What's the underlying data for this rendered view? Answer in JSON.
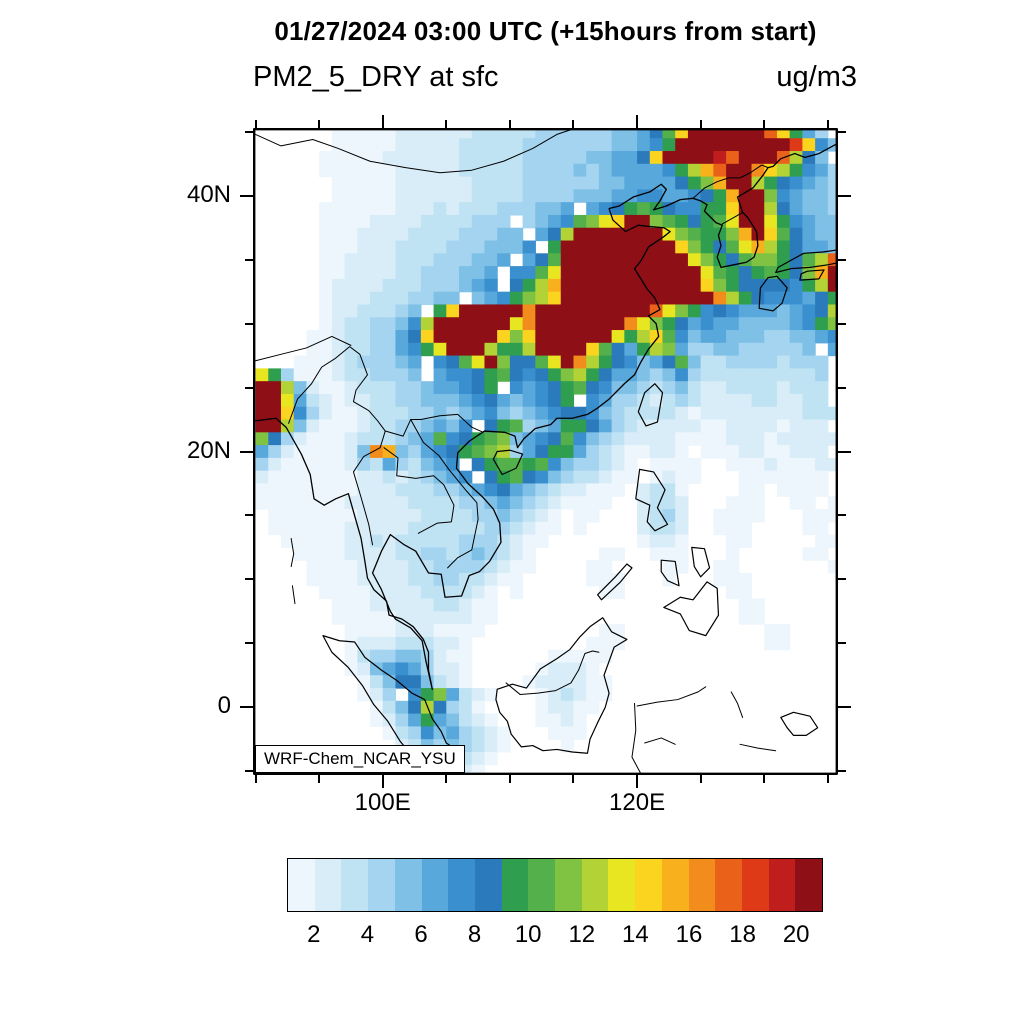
{
  "header": {
    "datetime_title": "01/27/2024 03:00 UTC (+15hours from start)",
    "variable_title": "PM2_5_DRY at sfc",
    "units_label": "ug/m3"
  },
  "map": {
    "annotation_label": "WRF-Chem_NCAR_YSU"
  },
  "axes": {
    "x_ticks": [
      {
        "value": 100,
        "label": "100E"
      },
      {
        "value": 120,
        "label": "120E"
      }
    ],
    "x_minor": [
      90,
      95,
      105,
      110,
      115,
      125,
      130,
      135
    ],
    "y_ticks": [
      {
        "value": 40,
        "label": "40N"
      },
      {
        "value": 20,
        "label": "20N"
      },
      {
        "value": 0,
        "label": "0"
      }
    ],
    "y_minor": [
      -5,
      5,
      10,
      15,
      25,
      30,
      35,
      45
    ]
  },
  "chart_data": {
    "type": "heatmap",
    "title": "PM2_5_DRY at sfc",
    "suptitle": "01/27/2024 03:00 UTC (+15hours from start)",
    "units": "ug/m3",
    "annotation": "WRF-Chem_NCAR_YSU",
    "lon_min": 89.8,
    "lon_max": 135.8,
    "lat_min": -5.3,
    "lat_max": 45.3,
    "colorbar": {
      "tick_labels": [
        2,
        4,
        6,
        8,
        10,
        12,
        14,
        16,
        18,
        20
      ],
      "min_level": 1,
      "max_level": 21,
      "colors": [
        "#edf6fc",
        "#d9edf8",
        "#c0e3f4",
        "#a4d4ef",
        "#7fc0e7",
        "#58a8dc",
        "#3a90cf",
        "#2b7bbc",
        "#2f9e4f",
        "#53b04a",
        "#80c342",
        "#b2d235",
        "#e8e621",
        "#fad41f",
        "#f8b01d",
        "#f28c1c",
        "#ea611a",
        "#de3a18",
        "#c01e1c",
        "#8e1016"
      ]
    },
    "grid": {
      "lon_start": 90,
      "lat_start": 45.5,
      "cell_deg": 1,
      "encoding": "0 = below 1 ug/m3 (white); 1-9 = levels 1-9; a-k = levels 10-20",
      "rows": [
        "00000011111222222333334444445568aekkkkkkhe964",
        "000000111112222233333444444455679kkkkkkkkkie75",
        "0000011111222222333334444455668ekkkkjhkkkhc85",
        "0000011111122222333334444545666679cfhkkgec97644",
        "00000011111222222333344444455666689bfkkc9876544",
        "0000001111122222233334444555667766789fkkb765544",
        "0000011111122232333444556 6789a987799ekkc865544",
        "00000111122223333444 4567abdekkba989adkkd976554",
        "000001112222333344455 68ckkkkkkkdba99bfkea86554",
        "0000011122233334445557 9kkkkkkkkkeb98adfc986655",
        "00000112222333444556 68akkkkkkkkkkdb98abb98achh",
        "0000011222233444556 77adkkkkkkkkkkkda989a98bfkk",
        "0000012222333444567 89cfkkkkkkkkkkkeb9888879ckk",
        "0000012223334455 5679bcekkkkkkkkkkkkgc98777689eg",
        "0000012233345 9ekkkkkgkkkkkkkkkhdb97876665678ce",
        "0000012334457ckkkkkkdgkkkkkkkgdb9867665555679b",
        "0000112334468ekkkkkebekkkkkkd9cea75665554455678",
        "00001123344679dkkkc99ckkkkea869cb64455444445 66",
        "0001112344456 78adkb88adkgc987568a53344443444 55",
        "d941112334445 67789a8789bc9866545743333333334 44",
        "kkc5211233344566789 76789a8755434532233332333 43",
        "kkd6321223344555678656789 7644323432222332233 33",
        "kke7421123334454567545678875433332122222222333",
        "kkc52111233445657 89a456998643222221122221222 32",
        "b8421112333456a789ab5678a754322221111222122222",
        "642111125gf546789abc4689964321122101112211222 2",
        "4211111243643567 89aa9a754432101111001112111222",
        "21111111223234567 89a875433211012110001111111 21",
        "111111112223334456786543221110233100001101111 1",
        "11111112222233334456543211110023320001110011 11",
        "0111111122222333344543210110002342001111000111",
        "011111122222333333443211010000233200111000011 1",
        "0011111223233333444321100000001221000110000011",
        "000111122223344345432100000110011100010000011",
        "0000111122223344443211000011000011001100000001",
        "000011112222334433211000001110001000111000000 0",
        "00000111122223333210100000011000000001100000 00",
        "000000111222223321100000000000000000001100000 0",
        "0000001111122222211000000000000000000011000 00",
        "00000001111222111100000000011000000000001100 00",
        "0000000122233322100000000011100000000000110 00",
        "000000013445542110000001111100000000000000000 ",
        "000000012567642210000012221000000000000000000 ",
        "00000000135885321000012222110000000000000000 0",
        "00000000124 79b6321000123211000000000000000000",
        "0000000001358c84310000122110000000000000000 00",
        "00000000012469653210001121000000000000000000 0",
        "000000000013475643210001110000000000000000000",
        "000000000002354543210000100000000000000000000",
        "000000000001233432100000000000000000000000000",
        "000000000000122321000000000000000000000000000"
      ]
    },
    "geo": {
      "coastlines": [
        [
          90,
          22.4,
          91.6,
          22.6,
          92.4,
          21.9,
          93.6,
          19.8,
          94.3,
          18.2,
          94.6,
          16.3,
          95.4,
          15.8,
          96.3,
          16.3,
          97.3,
          16.7,
          97.7,
          15.3,
          98.3,
          13.2,
          98.6,
          11.4,
          98.8,
          10.1,
          99.3,
          9.2,
          100.3,
          8.3,
          100.5,
          7.2,
          101.5,
          6.9,
          102.4,
          6.3,
          103.2,
          5.3,
          103.6,
          4.3,
          103.6,
          2.9,
          103.9,
          1.4,
          103.4,
          3.6,
          103.1,
          5.2,
          102.2,
          6.2,
          101,
          6.9,
          100.6,
          7.5,
          99.9,
          9.2,
          99.2,
          10.5,
          99.9,
          12.2,
          100.6,
          13.5,
          101.7,
          12.7,
          102.6,
          12.2,
          103.6,
          10.5,
          104.6,
          10.4,
          104.9,
          8.6,
          106.2,
          8.7,
          106.8,
          10.3,
          107.6,
          10.6,
          108.4,
          11.4,
          109.3,
          12.9,
          109.2,
          14.4,
          108.7,
          15.5,
          107.9,
          16.4,
          106.7,
          17.5,
          105.8,
          18.7,
          105.9,
          19.9,
          106.8,
          20.8,
          108,
          21.6,
          109.6,
          21.5,
          110.4,
          21.2,
          110.6,
          20.3,
          111.1,
          21,
          112,
          21.8,
          113.2,
          22.1,
          113.7,
          22.6,
          114.9,
          22.6,
          116.1,
          22.9,
          116.9,
          23.4,
          117.8,
          24.1,
          119,
          25.3,
          119.8,
          26,
          120.3,
          27,
          120.9,
          28,
          121.7,
          29,
          121.5,
          30,
          120.9,
          30.6,
          121.8,
          31.1,
          121.4,
          32,
          120.8,
          32.7,
          119.8,
          34.3,
          120.3,
          34.9,
          120.9,
          36,
          122.1,
          36.8,
          122.6,
          37.2,
          122.1,
          37.5,
          120.9,
          37.6,
          120.1,
          37.7,
          119.1,
          37.2,
          118.1,
          38.1,
          117.8,
          39,
          118.6,
          39.2,
          119.7,
          39.9,
          121,
          40.3,
          121.9,
          40.9,
          122.3,
          40.5,
          121.8,
          39.6,
          121.3,
          38.9,
          122.3,
          39.2,
          123.4,
          39.7,
          124.4,
          39.8,
          125,
          39.6,
          125.5,
          39.3,
          125.3,
          38.8,
          126.2,
          37.9,
          126.7,
          37.7,
          126.4,
          36.9,
          126.6,
          36.1,
          126.3,
          35.2,
          126.6,
          34.4,
          127.6,
          34.6,
          128.6,
          34.8,
          129.2,
          35.2,
          129.5,
          36.1,
          129.4,
          37.2,
          128.7,
          38.3,
          128.3,
          38.7,
          127.9,
          39.9,
          129.1,
          40.6,
          129.9,
          41.6,
          130.3,
          42.2,
          130.7,
          42.3,
          131.3,
          42.9,
          132.4,
          43.3,
          133.2,
          43,
          134.3,
          43.3,
          135.4,
          43.9,
          136,
          44.2
        ]
      ],
      "borders": [
        [
          90,
          44.8,
          92,
          43.9,
          94.5,
          44.4,
          96.5,
          43.7,
          99,
          42.7,
          101.8,
          42.2,
          104.5,
          41.8,
          107,
          42,
          109.5,
          42.7,
          111.8,
          43.7,
          113.7,
          44.8,
          115.5,
          45.4
        ],
        [
          90,
          27.1,
          92,
          27.6,
          94,
          28.1,
          96,
          29,
          97.5,
          28.3
        ],
        [
          92.6,
          22.2,
          93.3,
          24.1,
          94.4,
          25.3,
          95.2,
          26.6,
          96.3,
          27.3,
          97.4,
          28.2,
          98.2,
          27.6,
          98.8,
          26,
          97.9,
          24.8,
          97.7,
          23.9,
          98.9,
          23.2,
          99.6,
          22.4,
          100.2,
          21.6
        ],
        [
          100.2,
          21.6,
          99.8,
          20.3,
          98.5,
          19.6,
          97.7,
          18.4,
          98.3,
          16.4,
          98.9,
          14.3,
          99.2,
          12.7
        ],
        [
          100.2,
          21.6,
          101.6,
          21.2,
          102.2,
          22.5,
          103,
          22.5,
          104.5,
          22.8,
          105.9,
          22.9,
          107,
          21.9,
          107.9,
          21.5
        ],
        [
          102.2,
          22.5,
          103.2,
          20.7,
          104.4,
          19.7,
          105.2,
          18.6,
          106.6,
          16.9,
          107.4,
          16,
          107.5,
          14.7
        ],
        [
          100.1,
          20.3,
          101.2,
          19.5,
          101.1,
          18.1,
          102.6,
          17.9,
          104,
          18.1,
          104.8,
          17.4,
          105.6,
          15.8,
          105.4,
          14.5,
          104.3,
          14.4,
          102.8,
          13.6
        ],
        [
          107.5,
          14.7,
          107,
          12.3,
          105.9,
          11.7,
          105.1,
          10.9
        ],
        [
          124.4,
          39.8,
          125.3,
          40.6,
          126.3,
          41.1,
          127.2,
          41.4,
          128.1,
          41.4,
          128.9,
          41.8,
          129.8,
          42.4,
          130.3,
          42.2
        ],
        [
          126.7,
          37.8,
          127.6,
          38.3,
          128.3,
          38.7
        ],
        [
          109.7,
          1.9,
          110.8,
          1,
          112.2,
          1.1,
          113.6,
          1.3,
          114.8,
          1.9,
          115.4,
          2.9,
          115.9,
          4.2,
          116.5,
          4.4,
          117,
          4.3
        ],
        [
          119.8,
          0.3,
          119.9,
          -1.8,
          119.6,
          -3.9,
          120.3,
          -5.2
        ],
        [
          120,
          0.1,
          121.6,
          0.4,
          123.2,
          0.6,
          124.8,
          1.2,
          125.4,
          1.6
        ],
        [
          120.6,
          -2.8,
          121.9,
          -2.4,
          123,
          -2.9
        ],
        [
          92.8,
          13.2,
          93,
          12,
          92.8,
          11
        ],
        [
          92.9,
          9.5,
          93.1,
          8.1
        ],
        [
          127.4,
          1.2,
          127.9,
          0.3,
          128.3,
          -0.8
        ],
        [
          128.1,
          -2.9,
          129.5,
          -3.2,
          130.9,
          -3.4
        ]
      ],
      "islands": [
        [
          120.1,
          23.1,
          120.7,
          22,
          121.6,
          22.3,
          122,
          24.6,
          121.4,
          25.3,
          120.6,
          24.6
        ],
        [
          108.7,
          19.4,
          109.4,
          18.2,
          110.5,
          18.7,
          111,
          19.8,
          110,
          20.1,
          109,
          20
        ],
        [
          120.2,
          18.6,
          121.3,
          18.4,
          122.2,
          17,
          121.6,
          15.6,
          122.4,
          14.3,
          121.4,
          13.8,
          120.8,
          14.5,
          121,
          15.8,
          119.9,
          16.3
        ],
        [
          122.1,
          7.8,
          123.4,
          8.6,
          124.4,
          8.4,
          125.5,
          9.8,
          126.3,
          9.3,
          126.4,
          7.2,
          125.4,
          5.6,
          124.1,
          6,
          123.4,
          7.3
        ],
        [
          124.3,
          12.5,
          125.3,
          12.4,
          125.7,
          10.9,
          125,
          10.2,
          124.5,
          11
        ],
        [
          121.9,
          11.5,
          123,
          11.4,
          123.3,
          9.5,
          122.4,
          9.9,
          121.9,
          10.6
        ],
        [
          117.2,
          8.4,
          118.7,
          9.8,
          119.6,
          10.9,
          119.2,
          11.2,
          118.3,
          10.2,
          116.9,
          8.8
        ],
        [
          109,
          1.4,
          110.2,
          1.8,
          111.3,
          1.5,
          112.4,
          3,
          113.7,
          3.8,
          114.7,
          4.5,
          115.5,
          5.5,
          116.3,
          6.3,
          117.3,
          7,
          118,
          5.9,
          119.2,
          5.3,
          118.2,
          4.7,
          117.8,
          3.6,
          117.4,
          2.5,
          117.8,
          1.1,
          117.5,
          0,
          116.9,
          -1.2,
          116.3,
          -2.5,
          116.1,
          -3.6,
          114.9,
          -3.5,
          113.7,
          -3.3,
          112.6,
          -3.4,
          111.8,
          -3,
          110.9,
          -3.1,
          110.1,
          -2.1,
          109.8,
          -1.1,
          109.2,
          -0.4,
          108.9,
          0.6
        ],
        [
          95.3,
          5.6,
          96.6,
          5.2,
          97.8,
          5.1,
          98.6,
          3.9,
          99.9,
          2.9,
          101.1,
          2.1,
          102.3,
          1.1,
          103.3,
          0.6,
          103.9,
          -0.9,
          104.6,
          -1.9,
          105,
          -2.8,
          105.9,
          -3.4,
          105.9,
          -4.7,
          105.6,
          -5.5,
          104.6,
          -5.3,
          103.6,
          -4.7,
          102.4,
          -3.9,
          101.4,
          -2.7,
          100.4,
          -1.1,
          99.3,
          0.2,
          98.4,
          1.7,
          97.3,
          3.1,
          96,
          4.3
        ],
        [
          129.6,
          31.2,
          130.7,
          31,
          131.4,
          31.6,
          131.8,
          32.8,
          131,
          33.7,
          130.3,
          33.6,
          129.7,
          32.8
        ],
        [
          130.9,
          34,
          132.1,
          34.3,
          133.6,
          34.4,
          135,
          34.6,
          136,
          34.8,
          136,
          35.8,
          134.6,
          35.6,
          133.1,
          35.5,
          132,
          34.9,
          131.1,
          34.4
        ],
        [
          132.8,
          33.4,
          134.3,
          33.5,
          134.7,
          34.2,
          133.4,
          34.1,
          132.9,
          33.9
        ],
        [
          131.3,
          -0.8,
          132.3,
          -0.4,
          133.6,
          -0.7,
          134.2,
          -1.6,
          133.3,
          -2.2,
          132.3,
          -2.2,
          131.8,
          -1.6
        ]
      ]
    }
  }
}
